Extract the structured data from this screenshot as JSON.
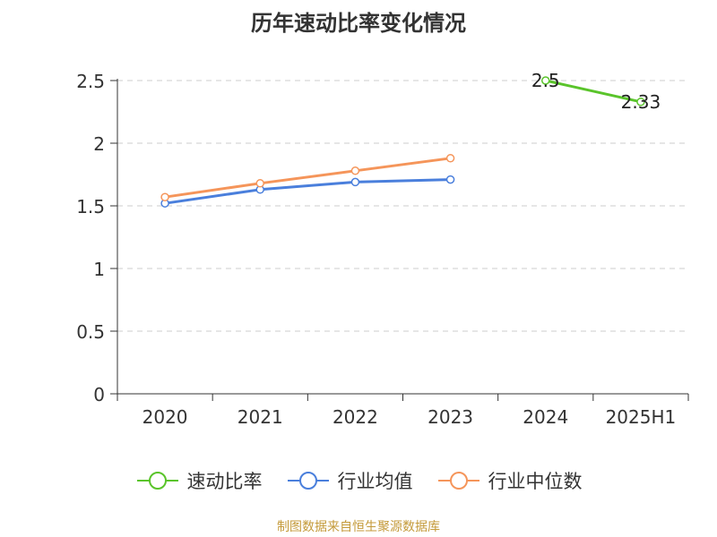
{
  "chart_data": {
    "type": "line",
    "title": "历年速动比率变化情况",
    "categories": [
      "2020",
      "2021",
      "2022",
      "2023",
      "2024",
      "2025H1"
    ],
    "ylim": [
      0,
      2.5
    ],
    "yticks": [
      "0",
      "0.5",
      "1",
      "1.5",
      "2",
      "2.5"
    ],
    "grid": true,
    "legend_position": "bottom",
    "series": [
      {
        "name": "速动比率",
        "color": "#5ac42b",
        "values": [
          null,
          null,
          null,
          null,
          2.5,
          2.33
        ],
        "labels": [
          null,
          null,
          null,
          null,
          "2.5",
          "2.33"
        ]
      },
      {
        "name": "行业均值",
        "color": "#4a7fdc",
        "values": [
          1.52,
          1.63,
          1.69,
          1.71,
          null,
          null
        ],
        "labels": [
          null,
          null,
          null,
          null,
          null,
          null
        ]
      },
      {
        "name": "行业中位数",
        "color": "#f5955a",
        "values": [
          1.57,
          1.68,
          1.78,
          1.88,
          null,
          null
        ],
        "labels": [
          null,
          null,
          null,
          null,
          null,
          null
        ]
      }
    ]
  },
  "source": "制图数据来自恒生聚源数据库"
}
